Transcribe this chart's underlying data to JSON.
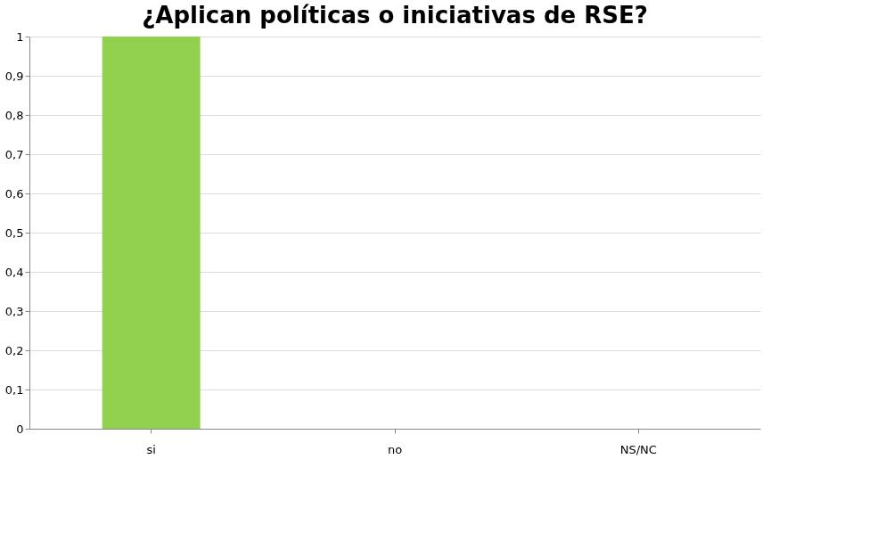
{
  "chart_data": {
    "type": "bar",
    "title": "¿Aplican políticas o iniciativas de RSE?",
    "categories": [
      "si",
      "no",
      "NS/NC"
    ],
    "values": [
      1,
      0,
      0
    ],
    "colors": [
      "#92d050",
      "#c00000",
      "#7f9fcf"
    ],
    "ylim": [
      0,
      1
    ],
    "yticks": [
      0,
      {
        "value": 0.1,
        "label": "0,1"
      },
      {
        "value": 0.2,
        "label": "0,2"
      },
      {
        "value": 0.3,
        "label": "0,3"
      },
      {
        "value": 0.4,
        "label": "0,4"
      },
      {
        "value": 0.5,
        "label": "0,5"
      },
      {
        "value": 0.6,
        "label": "0,6"
      },
      {
        "value": 0.7,
        "label": "0,7"
      },
      {
        "value": 0.8,
        "label": "0,8"
      },
      {
        "value": 0.9,
        "label": "0,9"
      },
      1
    ],
    "grid": "y"
  }
}
